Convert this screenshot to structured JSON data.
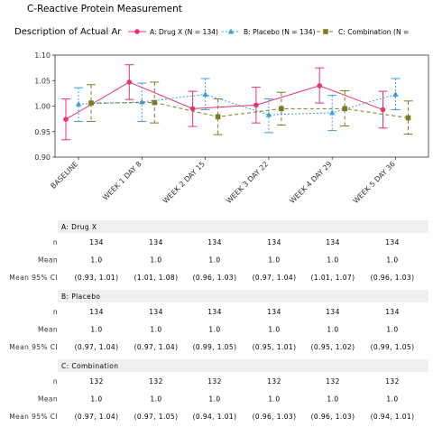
{
  "title": "C-Reactive Protein Measurement",
  "subtitle": "Description of Actual Ar",
  "chart_data": {
    "type": "line",
    "title": "C-Reactive Protein Measurement",
    "subtitle": "Description of Actual Ar",
    "categories": [
      "BASELINE",
      "WEEK 1 DAY 8",
      "WEEK 2 DAY 15",
      "WEEK 3 DAY 22",
      "WEEK 4 DAY 29",
      "WEEK 5 DAY 36"
    ],
    "ylim": [
      0.9,
      1.1
    ],
    "yticks": [
      "1.10",
      "1.05",
      "1.00",
      "0.95",
      "0.90"
    ],
    "yticks_values": [
      1.1,
      1.05,
      1.0,
      0.95,
      0.9
    ],
    "grid": false,
    "legend_position": "top",
    "series": [
      {
        "name": "A: Drug X (N = 134)",
        "color": "#e8336b",
        "marker": "circle",
        "line": "solid",
        "values": [
          0.974,
          1.047,
          0.995,
          1.002,
          1.04,
          0.993
        ],
        "ci_low": [
          0.934,
          1.013,
          0.96,
          0.967,
          1.006,
          0.957
        ],
        "ci_high": [
          1.014,
          1.081,
          1.029,
          1.037,
          1.075,
          1.029
        ]
      },
      {
        "name": "B: Placebo (N = 134)",
        "color": "#3d9ee3",
        "marker": "triangle",
        "line": "dotted",
        "values": [
          1.004,
          1.008,
          1.023,
          0.983,
          0.987,
          1.023
        ],
        "ci_low": [
          0.97,
          0.97,
          0.993,
          0.948,
          0.952,
          0.993
        ],
        "ci_high": [
          1.036,
          1.045,
          1.054,
          1.014,
          1.021,
          1.054
        ]
      },
      {
        "name": "C: Combination (N = ",
        "color": "#7d7a24",
        "marker": "square",
        "line": "dashed",
        "values": [
          1.006,
          1.007,
          0.979,
          0.995,
          0.995,
          0.977
        ],
        "ci_low": [
          0.97,
          0.967,
          0.944,
          0.963,
          0.961,
          0.945
        ],
        "ci_high": [
          1.042,
          1.047,
          1.014,
          1.027,
          1.03,
          1.01
        ]
      }
    ]
  },
  "table": {
    "row_labels": [
      "n",
      "Mean",
      "Mean 95% CI"
    ],
    "groups": [
      {
        "name": "A: Drug X",
        "n": [
          "134",
          "134",
          "134",
          "134",
          "134",
          "134"
        ],
        "mean": [
          "1.0",
          "1.0",
          "1.0",
          "1.0",
          "1.0",
          "1.0"
        ],
        "ci": [
          "(0.93, 1.01)",
          "(1.01, 1.08)",
          "(0.96, 1.03)",
          "(0.97, 1.04)",
          "(1.01, 1.07)",
          "(0.96, 1.03)"
        ]
      },
      {
        "name": "B: Placebo",
        "n": [
          "134",
          "134",
          "134",
          "134",
          "134",
          "134"
        ],
        "mean": [
          "1.0",
          "1.0",
          "1.0",
          "1.0",
          "1.0",
          "1.0"
        ],
        "ci": [
          "(0.97, 1.04)",
          "(0.97, 1.04)",
          "(0.99, 1.05)",
          "(0.95, 1.01)",
          "(0.95, 1.02)",
          "(0.99, 1.05)"
        ]
      },
      {
        "name": "C: Combination",
        "n": [
          "132",
          "132",
          "132",
          "132",
          "132",
          "132"
        ],
        "mean": [
          "1.0",
          "1.0",
          "1.0",
          "1.0",
          "1.0",
          "1.0"
        ],
        "ci": [
          "(0.97, 1.04)",
          "(0.97, 1.05)",
          "(0.94, 1.01)",
          "(0.96, 1.03)",
          "(0.96, 1.03)",
          "(0.94, 1.01)"
        ]
      }
    ]
  }
}
